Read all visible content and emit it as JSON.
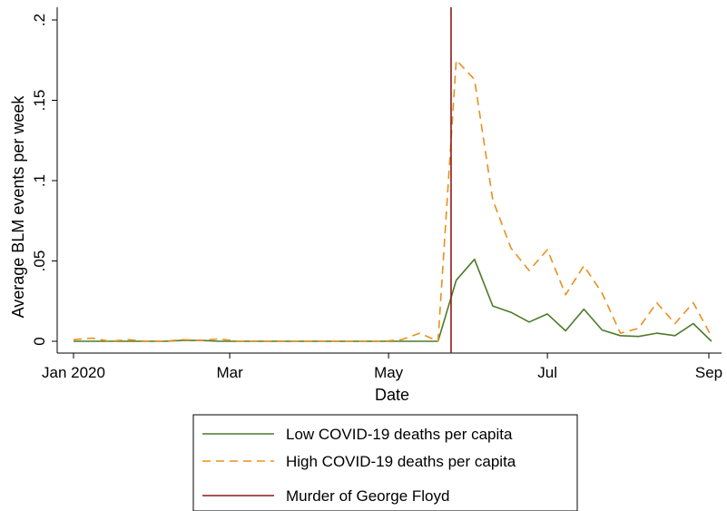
{
  "chart_data": {
    "type": "line",
    "xlabel": "Date",
    "ylabel": "Average BLM events per week",
    "x_tick_labels": [
      "Jan 2020",
      "Mar",
      "May",
      "Jul",
      "Sep"
    ],
    "x_tick_dates": [
      "2020-01-01",
      "2020-03-01",
      "2020-05-01",
      "2020-07-01",
      "2020-09-01"
    ],
    "xlim": [
      "2020-01-01",
      "2020-09-01"
    ],
    "y_tick_labels": [
      "0",
      ".05",
      ".1",
      ".15",
      ".2"
    ],
    "y_ticks": [
      0,
      0.05,
      0.1,
      0.15,
      0.2
    ],
    "ylim": [
      0,
      0.2
    ],
    "grid": false,
    "legend_position": "bottom",
    "x": [
      "2020-01-01",
      "2020-01-08",
      "2020-01-15",
      "2020-01-22",
      "2020-01-29",
      "2020-02-05",
      "2020-02-12",
      "2020-02-19",
      "2020-02-26",
      "2020-03-04",
      "2020-03-11",
      "2020-03-18",
      "2020-03-25",
      "2020-04-01",
      "2020-04-08",
      "2020-04-15",
      "2020-04-22",
      "2020-04-29",
      "2020-05-06",
      "2020-05-13",
      "2020-05-20",
      "2020-05-27",
      "2020-06-03",
      "2020-06-10",
      "2020-06-17",
      "2020-06-24",
      "2020-07-01",
      "2020-07-08",
      "2020-07-15",
      "2020-07-22",
      "2020-07-29",
      "2020-08-05",
      "2020-08-12",
      "2020-08-19",
      "2020-08-26",
      "2020-09-02"
    ],
    "series": [
      {
        "name": "Low COVID-19 deaths per capita",
        "color": "#4e7a2a",
        "style": "solid",
        "values": [
          0,
          0,
          0,
          0,
          0,
          0,
          0.0005,
          0.0005,
          0,
          0,
          0,
          0,
          0,
          0,
          0,
          0,
          0,
          0,
          0,
          0,
          0,
          0.038,
          0.051,
          0.022,
          0.018,
          0.012,
          0.017,
          0.0065,
          0.02,
          0.007,
          0.0035,
          0.003,
          0.005,
          0.0035,
          0.011,
          0
        ]
      },
      {
        "name": "High COVID-19 deaths per capita",
        "color": "#e8901c",
        "style": "dashed",
        "values": [
          0.001,
          0.002,
          0,
          0.001,
          0,
          0,
          0.001,
          0.0005,
          0.0015,
          0,
          0,
          0,
          0,
          0,
          0,
          0,
          0,
          0,
          0.001,
          0.005,
          0,
          0.175,
          0.163,
          0.088,
          0.058,
          0.044,
          0.057,
          0.029,
          0.047,
          0.03,
          0.005,
          0.008,
          0.024,
          0.011,
          0.024,
          0.003
        ]
      }
    ],
    "vline": {
      "name": "Murder of George Floyd",
      "date": "2020-05-25",
      "color": "#8b1a1a"
    }
  }
}
